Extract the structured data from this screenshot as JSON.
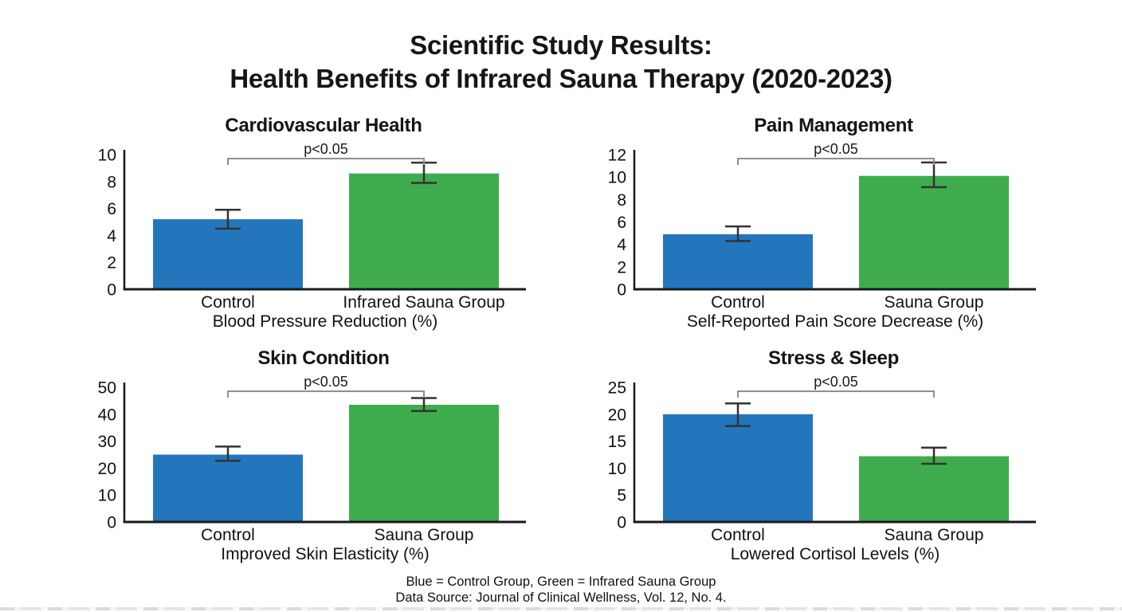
{
  "page": {
    "title_line1": "Scientific Study Results:",
    "title_line2": "Health Benefits of Infrared Sauna Therapy (2020-2023)",
    "footer_legend": "Blue = Control Group, Green = Infrared Sauna Group",
    "footer_source": "Data Source: Journal of Clinical Wellness, Vol. 12, No. 4."
  },
  "colors": {
    "control_blue": "#2376BC",
    "sauna_green": "#3FAC4E",
    "axis": "#1a1a1a",
    "error_bar": "#333333",
    "bracket": "#8f8f8f"
  },
  "chart_data": [
    {
      "type": "bar",
      "title": "Cardiovascular Health",
      "xlabel": "Blood Pressure Reduction (%)",
      "categories": [
        "Control",
        "Infrared Sauna Group"
      ],
      "values": [
        5.2,
        8.6
      ],
      "error_low": [
        4.5,
        7.9
      ],
      "error_high": [
        5.9,
        9.4
      ],
      "significance": "p<0.05",
      "ylim": [
        0,
        10
      ],
      "ytick_step": 2,
      "grid": false,
      "legend_position": "none"
    },
    {
      "type": "bar",
      "title": "Pain Management",
      "xlabel": "Self-Reported Pain Score Decrease (%)",
      "categories": [
        "Control",
        "Sauna Group"
      ],
      "values": [
        4.9,
        10.1
      ],
      "error_low": [
        4.3,
        9.1
      ],
      "error_high": [
        5.6,
        11.3
      ],
      "significance": "p<0.05",
      "ylim": [
        0,
        12
      ],
      "ytick_step": 2,
      "grid": false,
      "legend_position": "none"
    },
    {
      "type": "bar",
      "title": "Skin Condition",
      "xlabel": "Improved Skin Elasticity (%)",
      "categories": [
        "Control",
        "Sauna Group"
      ],
      "values": [
        25,
        43.5
      ],
      "error_low": [
        22.7,
        41.2
      ],
      "error_high": [
        28,
        46
      ],
      "significance": "p<0.05",
      "ylim": [
        0,
        50
      ],
      "ytick_step": 10,
      "grid": false,
      "legend_position": "none"
    },
    {
      "type": "bar",
      "title": "Stress & Sleep",
      "xlabel": "Lowered Cortisol Levels (%)",
      "categories": [
        "Control",
        "Sauna Group"
      ],
      "values": [
        20,
        12.2
      ],
      "error_low": [
        17.8,
        10.8
      ],
      "error_high": [
        22,
        13.8
      ],
      "significance": "p<0.05",
      "ylim": [
        0,
        25
      ],
      "ytick_step": 5,
      "grid": false,
      "legend_position": "none"
    }
  ]
}
